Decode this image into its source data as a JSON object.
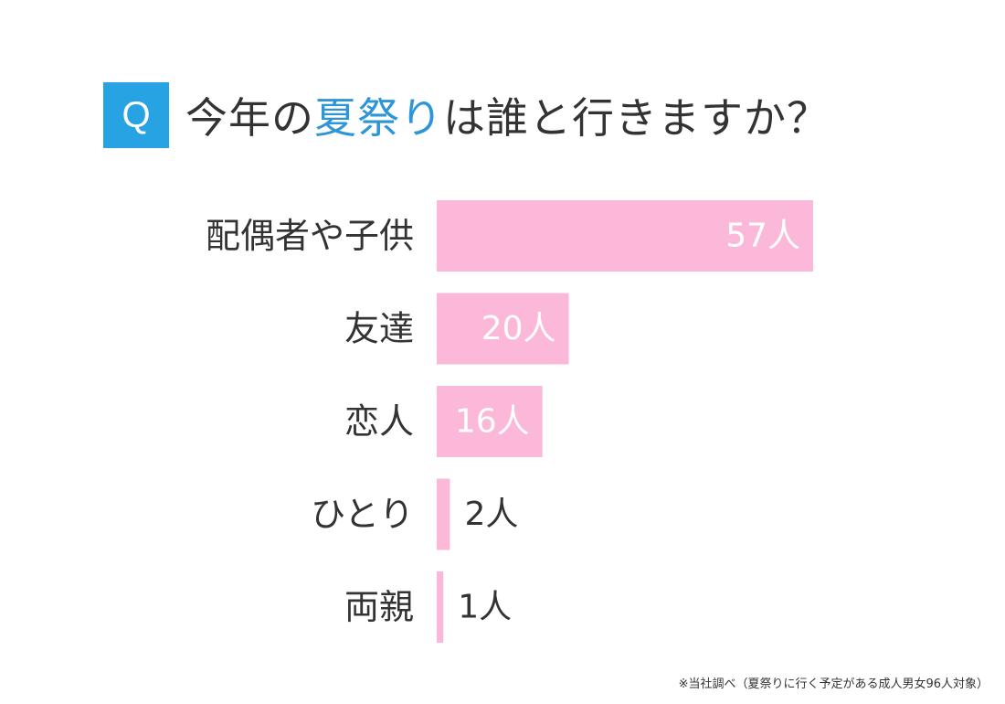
{
  "header": {
    "badge": "Q",
    "title_before": "今年の",
    "title_highlight": "夏祭り",
    "title_after": "は誰と行きますか？"
  },
  "colors": {
    "badge": "#27a3e3",
    "title_highlight": "#2e96d6",
    "bar": "#fbb8d8",
    "label": "#333333",
    "value_inside": "#ffffff",
    "value_outside": "#333333"
  },
  "chart_data": {
    "type": "bar",
    "orientation": "horizontal",
    "categories": [
      "配偶者や子供",
      "友達",
      "恋人",
      "ひとり",
      "両親"
    ],
    "values": [
      57,
      20,
      16,
      2,
      1
    ],
    "value_labels": [
      "57人",
      "20人",
      "16人",
      "2人",
      "1人"
    ],
    "unit": "人",
    "title": "今年の夏祭りは誰と行きますか？",
    "xlim": [
      0,
      57
    ],
    "grid": false,
    "legend": false
  },
  "footnote": "※当社調べ（夏祭りに行く予定がある成人男女96人対象）"
}
